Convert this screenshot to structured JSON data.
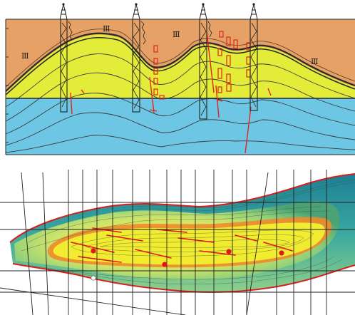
{
  "figure": {
    "section_labels": [
      {
        "id": "roman-a",
        "text": "Ⅲ"
      },
      {
        "id": "roman-b",
        "text": "Ⅲ"
      },
      {
        "id": "roman-c",
        "text": "Ⅲ"
      },
      {
        "id": "roman-d",
        "text": "Ⅲ"
      }
    ],
    "wells": [
      {
        "id": "well-1"
      },
      {
        "id": "well-2"
      },
      {
        "id": "well-3"
      },
      {
        "id": "well-4"
      }
    ],
    "map_well_points": [
      {
        "id": "point-1",
        "color": "#e01818"
      },
      {
        "id": "point-2",
        "color": "#e01818"
      },
      {
        "id": "point-3",
        "color": "#e01818"
      },
      {
        "id": "point-4",
        "color": "#e01818"
      },
      {
        "id": "point-5",
        "color": "#ffffff"
      }
    ],
    "colors": {
      "upper_layer": "#e5a166",
      "oil_layer": "#e4ec3a",
      "water_layer": "#6cc6e4",
      "fault": "#e0261c",
      "map_boundary": "#d81f1f",
      "map_core": "#f2ec30",
      "map_halo": "#f08a2a",
      "map_outer_green": "#59b06a",
      "map_outer_teal": "#2f8fa8"
    }
  }
}
